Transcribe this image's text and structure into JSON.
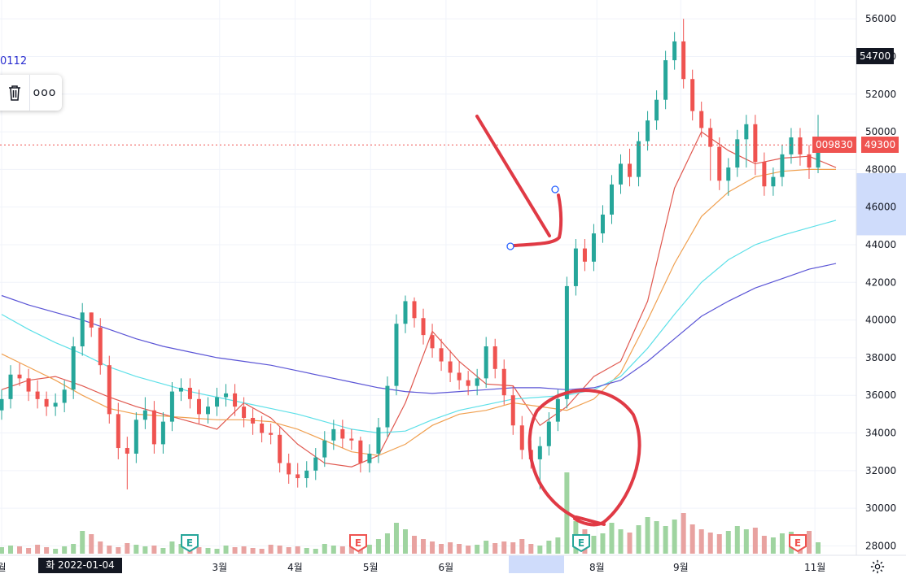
{
  "symbol_label": "0112",
  "toolbar": {
    "delete_icon": "trash-icon",
    "more_icon": "more-dots-icon",
    "more_label": "ooo"
  },
  "crosshair": {
    "date_label": "화 2022-01-04",
    "price_label": "54700"
  },
  "last_price": {
    "ticker_label": "009830",
    "price_label": "49300",
    "color": "#ef5350"
  },
  "colors": {
    "up": "#26a69a",
    "down": "#ef5350",
    "ma_short": "#e0584f",
    "ma_mid": "#f0a050",
    "ma_long": "#5ee0e8",
    "ma_longest": "#5b55d6",
    "annotation": "#e03a45",
    "highlight": "#cfdcfb"
  },
  "settings_icon": "gear-icon",
  "chart_data": {
    "type": "candlestick",
    "title": "",
    "xlabel": "",
    "ylabel": "",
    "ylim": [
      27500,
      57000
    ],
    "y_ticks": [
      "28000",
      "30000",
      "32000",
      "34000",
      "36000",
      "38000",
      "40000",
      "42000",
      "44000",
      "46000",
      "48000",
      "50000",
      "52000",
      "54000",
      "56000"
    ],
    "x_ticks": [
      "월",
      "3월",
      "4월",
      "5월",
      "6월",
      "8월",
      "9월",
      "11월"
    ],
    "highlight_price_range": [
      44500,
      47800
    ],
    "grid": true,
    "earnings_markers": [
      "E",
      "E",
      "E",
      "E"
    ],
    "series": [
      {
        "name": "",
        "kind": "ma",
        "color": "#e0584f",
        "y": [
          36300,
          36800,
          37000,
          36500,
          35900,
          35400,
          35000,
          34600,
          34200,
          35600,
          34800,
          33400,
          32400,
          32200,
          32800,
          35600,
          39400,
          37800,
          36600,
          36500,
          34400,
          35400,
          37000,
          37800,
          41000,
          47000,
          50000,
          49000,
          48300,
          48600,
          48700,
          48100
        ]
      },
      {
        "name": "",
        "kind": "ma",
        "color": "#f0a050",
        "y": [
          38200,
          37500,
          36800,
          36000,
          35300,
          35000,
          34900,
          34800,
          34700,
          34700,
          34600,
          34200,
          33600,
          33000,
          32800,
          33400,
          34400,
          35000,
          35200,
          35600,
          35400,
          35200,
          35800,
          37200,
          40000,
          43000,
          45500,
          46800,
          47600,
          47900,
          48000,
          48000
        ]
      },
      {
        "name": "",
        "kind": "ma",
        "color": "#5ee0e8",
        "y": [
          40300,
          39500,
          38800,
          38200,
          37500,
          37000,
          36600,
          36200,
          35900,
          35600,
          35300,
          35000,
          34600,
          34200,
          34000,
          34100,
          34700,
          35200,
          35500,
          35800,
          35900,
          36000,
          36300,
          37000,
          38500,
          40300,
          42000,
          43200,
          44000,
          44500,
          44900,
          45300
        ]
      },
      {
        "name": "",
        "kind": "ma",
        "color": "#5b55d6",
        "y": [
          41300,
          40800,
          40400,
          40000,
          39500,
          39000,
          38600,
          38300,
          38000,
          37800,
          37600,
          37300,
          37000,
          36700,
          36400,
          36200,
          36100,
          36200,
          36300,
          36400,
          36400,
          36300,
          36400,
          36800,
          37800,
          39000,
          40200,
          41000,
          41700,
          42200,
          42700,
          43000
        ]
      }
    ],
    "ma_x_index": [
      0,
      3,
      6,
      9,
      12,
      15,
      18,
      21,
      24,
      27,
      30,
      33,
      36,
      39,
      42,
      45,
      48,
      51,
      54,
      57,
      60,
      63,
      66,
      69,
      72,
      75,
      78,
      81,
      84,
      87,
      90,
      93
    ],
    "candles": {
      "open": [
        35200,
        35800,
        37100,
        36900,
        36200,
        35800,
        35400,
        35600,
        36300,
        38600,
        40400,
        39600,
        37600,
        35000,
        33200,
        32900,
        34700,
        35200,
        33400,
        34600,
        36200,
        36400,
        35800,
        35000,
        35400,
        35900,
        36100,
        35400,
        34800,
        34500,
        34000,
        33900,
        32400,
        31800,
        31600,
        32000,
        32700,
        33600,
        34200,
        33700,
        33600,
        32400,
        32900,
        34300,
        36500,
        39800,
        41000,
        40100,
        39200,
        38500,
        37800,
        37200,
        36800,
        36500,
        36900,
        38600,
        37400,
        36000,
        34400,
        33100,
        32600,
        33300,
        34600,
        35800,
        41800,
        43800,
        43100,
        44600,
        45600,
        47200,
        48300,
        47600,
        49500,
        50600,
        51700,
        53800,
        54800,
        52800,
        51100,
        50200,
        49200,
        47400,
        48100,
        49600,
        50400,
        48400,
        47100,
        47600,
        48800,
        49700,
        48800,
        48100
      ],
      "close": [
        35800,
        37100,
        36900,
        36200,
        35800,
        35400,
        35600,
        36300,
        38600,
        40400,
        39600,
        37600,
        35000,
        33200,
        32900,
        34700,
        35200,
        33400,
        34600,
        36200,
        36400,
        35800,
        35000,
        35400,
        35900,
        36100,
        35400,
        34800,
        34500,
        34000,
        33900,
        32400,
        31800,
        31600,
        32000,
        32700,
        33600,
        34200,
        33700,
        33600,
        32400,
        32900,
        34300,
        36500,
        39800,
        41000,
        40100,
        39200,
        38500,
        37800,
        37200,
        36800,
        36500,
        36900,
        38600,
        37400,
        36000,
        34400,
        33100,
        32600,
        33300,
        34600,
        35800,
        41800,
        43800,
        43100,
        44600,
        45600,
        47200,
        48300,
        47600,
        49500,
        50600,
        51700,
        53800,
        54800,
        52800,
        51100,
        50200,
        49200,
        47400,
        48100,
        49600,
        50400,
        48400,
        47100,
        47600,
        48800,
        49700,
        48800,
        48100,
        49300
      ],
      "high": [
        36300,
        37600,
        37700,
        37400,
        36800,
        36200,
        36100,
        36800,
        39100,
        40900,
        40400,
        40100,
        38100,
        35600,
        33800,
        35100,
        35900,
        35700,
        35100,
        36700,
        36900,
        36900,
        36300,
        35900,
        36400,
        36600,
        36600,
        35900,
        35300,
        34900,
        34500,
        34300,
        32900,
        32400,
        32500,
        33200,
        34100,
        34700,
        34700,
        34200,
        33800,
        33400,
        34800,
        37000,
        40300,
        41300,
        41200,
        40600,
        39800,
        39000,
        38400,
        37800,
        37300,
        37400,
        39100,
        39000,
        37900,
        36500,
        34900,
        33600,
        33800,
        35100,
        36300,
        42300,
        44300,
        44300,
        45100,
        46100,
        47700,
        48800,
        49100,
        50000,
        51100,
        52200,
        54300,
        55300,
        56000,
        53300,
        51600,
        50700,
        49700,
        48600,
        50100,
        50900,
        50900,
        48900,
        48100,
        49300,
        50200,
        50200,
        49300,
        50900
      ],
      "low": [
        34700,
        35300,
        36500,
        35700,
        35300,
        34900,
        34900,
        35100,
        35800,
        38100,
        39100,
        37100,
        34500,
        32600,
        31000,
        32400,
        34200,
        32900,
        32900,
        34100,
        35700,
        35300,
        34500,
        34500,
        34900,
        35400,
        34900,
        34300,
        33900,
        33500,
        33400,
        31900,
        31300,
        31100,
        31100,
        31500,
        32200,
        33100,
        33200,
        33100,
        31900,
        31900,
        32400,
        33800,
        36000,
        39300,
        39600,
        38700,
        38000,
        37300,
        36700,
        36300,
        36000,
        36000,
        36400,
        36900,
        35500,
        33900,
        32600,
        32100,
        31000,
        32800,
        34100,
        35300,
        41300,
        42600,
        42600,
        44100,
        45100,
        46700,
        47100,
        47100,
        49000,
        50100,
        51200,
        53300,
        52300,
        50600,
        49700,
        47400,
        46900,
        46600,
        47600,
        48100,
        47700,
        46600,
        46600,
        47100,
        48300,
        48200,
        47500,
        47800
      ]
    },
    "volume": [
      0.08,
      0.1,
      0.09,
      0.07,
      0.11,
      0.08,
      0.06,
      0.09,
      0.12,
      0.28,
      0.24,
      0.15,
      0.1,
      0.08,
      0.13,
      0.11,
      0.09,
      0.1,
      0.07,
      0.15,
      0.12,
      0.09,
      0.08,
      0.07,
      0.06,
      0.1,
      0.08,
      0.09,
      0.07,
      0.06,
      0.11,
      0.1,
      0.08,
      0.09,
      0.07,
      0.06,
      0.12,
      0.1,
      0.09,
      0.08,
      0.14,
      0.11,
      0.18,
      0.25,
      0.38,
      0.3,
      0.22,
      0.18,
      0.15,
      0.12,
      0.14,
      0.12,
      0.1,
      0.11,
      0.16,
      0.13,
      0.15,
      0.14,
      0.18,
      0.12,
      0.1,
      0.16,
      0.2,
      1.0,
      0.4,
      0.3,
      0.22,
      0.25,
      0.38,
      0.3,
      0.26,
      0.35,
      0.45,
      0.4,
      0.34,
      0.42,
      0.5,
      0.36,
      0.3,
      0.26,
      0.24,
      0.28,
      0.34,
      0.3,
      0.32,
      0.22,
      0.2,
      0.25,
      0.27,
      0.24,
      0.28,
      0.14
    ]
  }
}
